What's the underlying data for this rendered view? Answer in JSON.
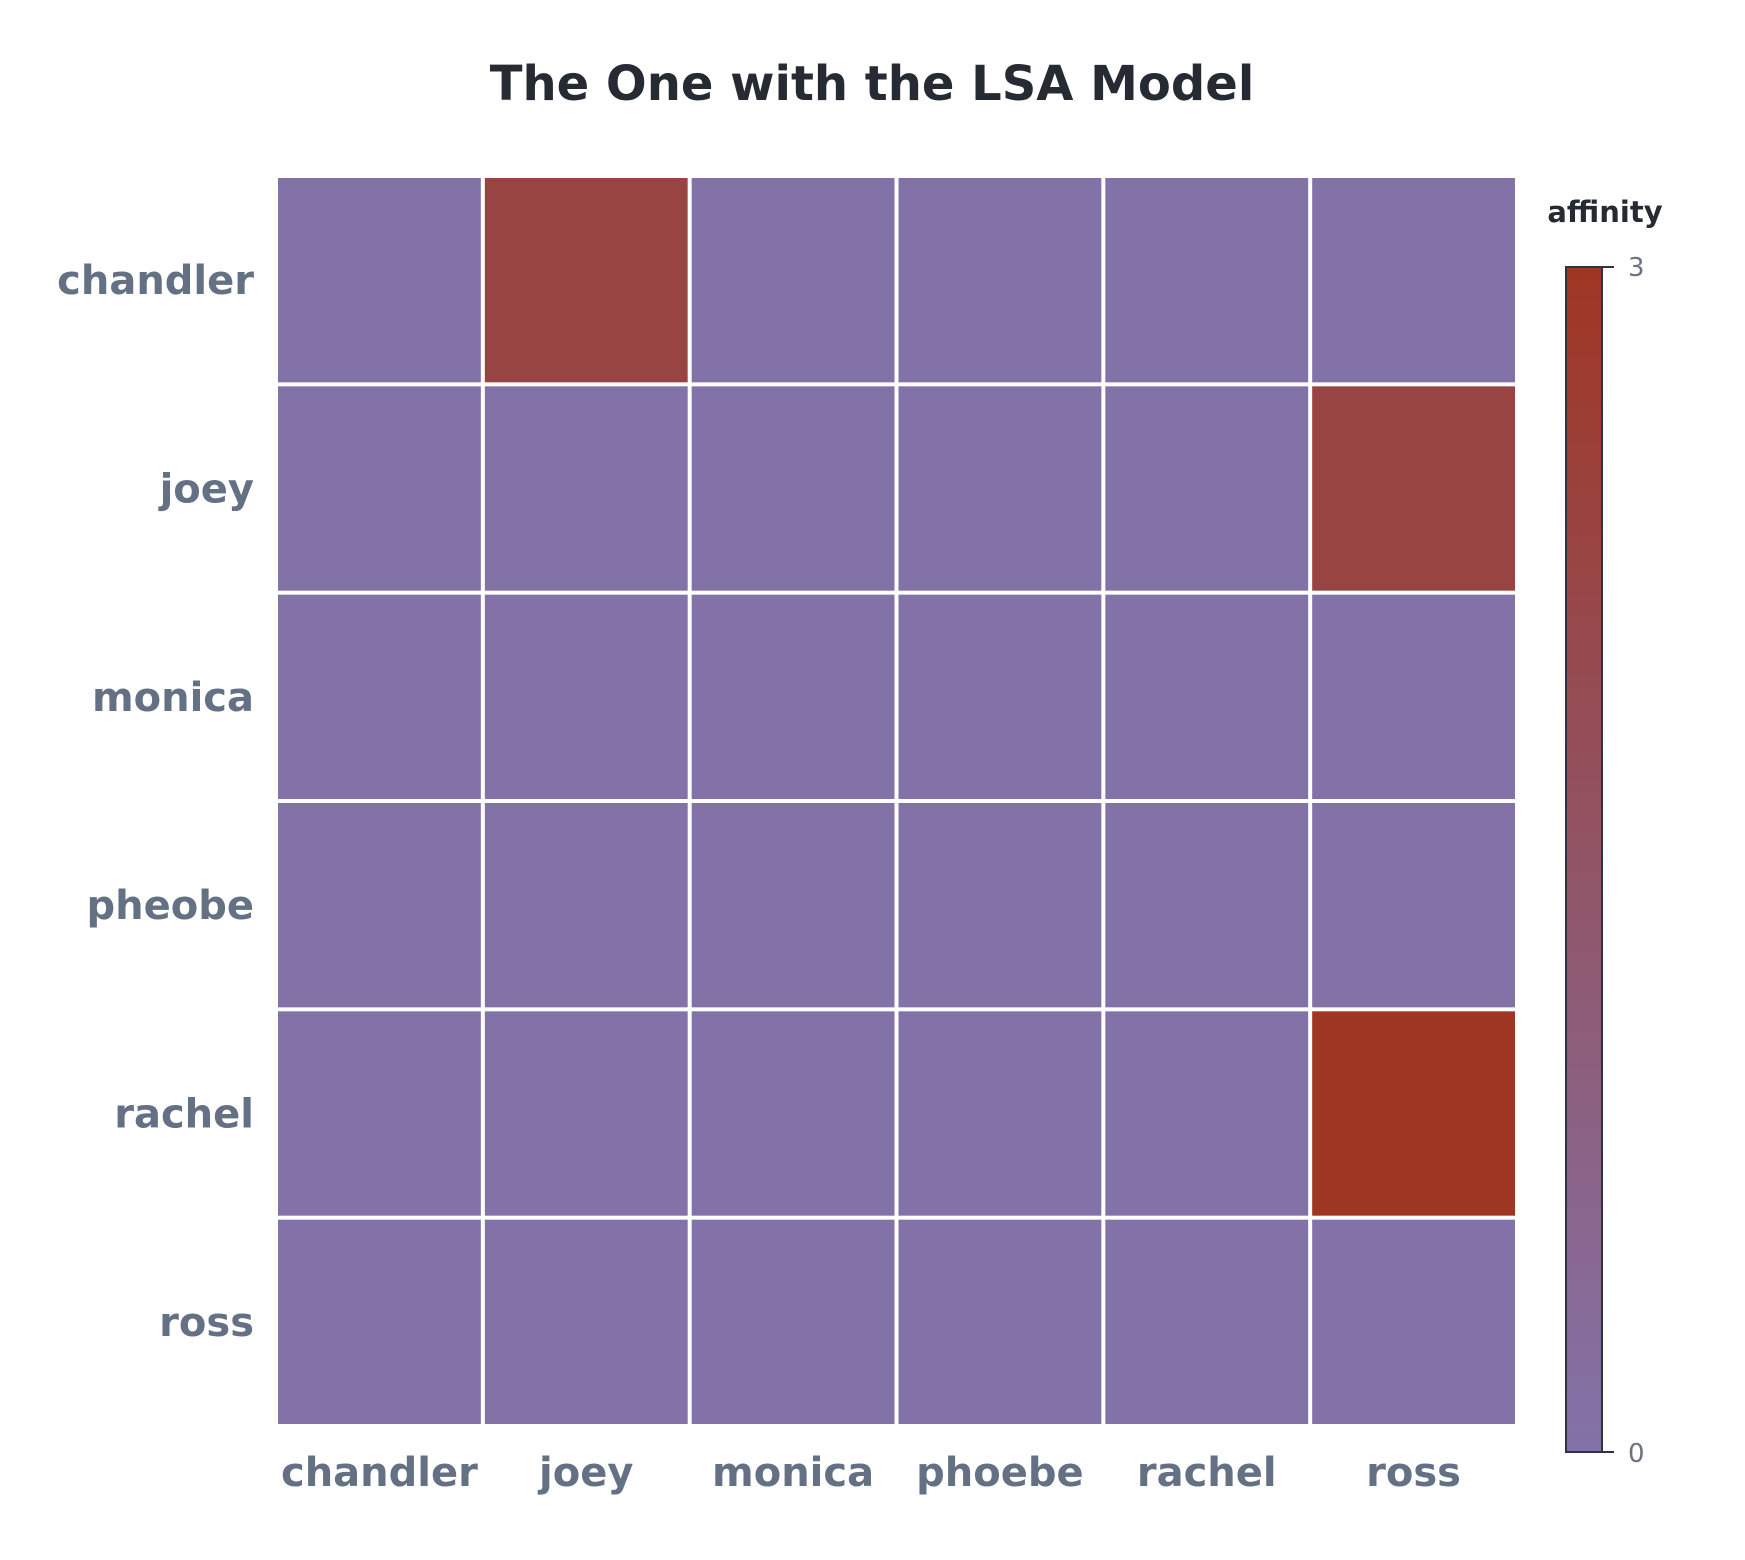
{
  "chart_data": {
    "type": "heatmap",
    "title": "The One with the LSA Model",
    "x_categories": [
      "chandler",
      "joey",
      "monica",
      "phoebe",
      "rachel",
      "ross"
    ],
    "y_categories": [
      "chandler",
      "joey",
      "monica",
      "pheobe",
      "rachel",
      "ross"
    ],
    "values": [
      [
        0,
        2.3,
        0,
        0,
        0,
        0
      ],
      [
        0,
        0,
        0,
        0,
        0,
        2.3
      ],
      [
        0,
        0,
        0,
        0,
        0,
        0
      ],
      [
        0,
        0,
        0,
        0,
        0,
        0
      ],
      [
        0,
        0,
        0,
        0,
        0,
        3
      ],
      [
        0,
        0,
        0,
        0,
        0,
        0
      ]
    ],
    "colorbar": {
      "title": "affinity",
      "min": 0,
      "max": 3,
      "tick_labels": [
        "3",
        "0"
      ],
      "low_color": "#8372a8",
      "high_color": "#9f3623"
    },
    "grid": true
  }
}
